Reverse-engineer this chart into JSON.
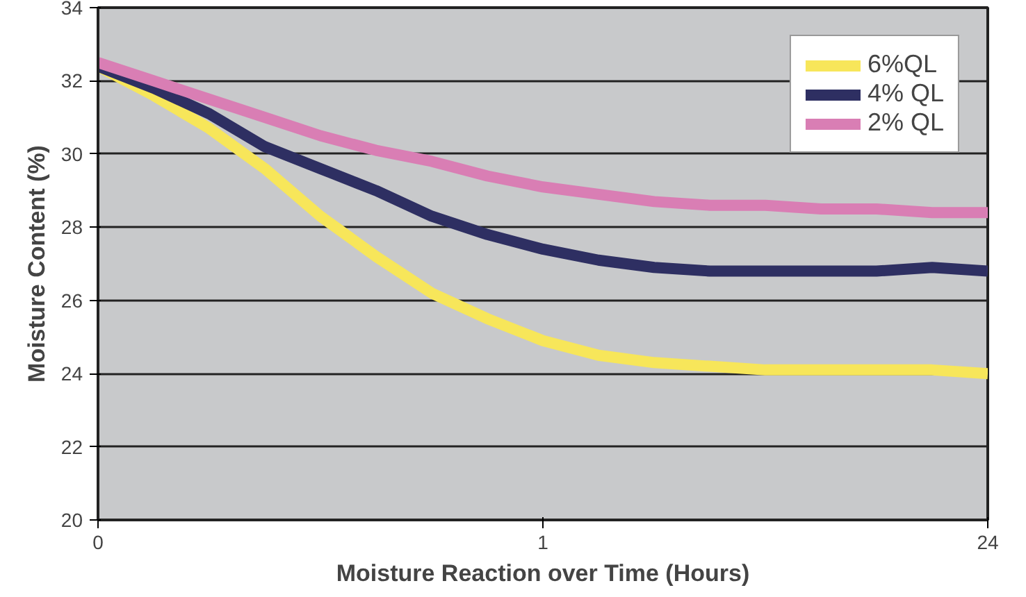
{
  "chart_data": {
    "type": "line",
    "xlabel": "Moisture Reaction over Time (Hours)",
    "ylabel": "Moisture Content (%)",
    "categories": [
      "0",
      null,
      null,
      null,
      null,
      null,
      null,
      null,
      "1",
      null,
      null,
      null,
      null,
      null,
      null,
      null,
      "24"
    ],
    "series": [
      {
        "name": "6%QL",
        "color": "#f7e65a",
        "values": [
          32.4,
          31.6,
          30.7,
          29.6,
          28.3,
          27.2,
          26.2,
          25.5,
          24.9,
          24.5,
          24.3,
          24.2,
          24.1,
          24.1,
          24.1,
          24.1,
          24.0
        ]
      },
      {
        "name": "4% QL",
        "color": "#2e2f62",
        "values": [
          32.4,
          31.8,
          31.1,
          30.2,
          29.6,
          29.0,
          28.3,
          27.8,
          27.4,
          27.1,
          26.9,
          26.8,
          26.8,
          26.8,
          26.8,
          26.9,
          26.8
        ]
      },
      {
        "name": "2% QL",
        "color": "#d97eb4",
        "values": [
          32.5,
          32.0,
          31.5,
          31.0,
          30.5,
          30.1,
          29.8,
          29.4,
          29.1,
          28.9,
          28.7,
          28.6,
          28.6,
          28.5,
          28.5,
          28.4,
          28.4
        ]
      }
    ],
    "ylim": [
      20,
      34
    ],
    "yticks": [
      20,
      22,
      24,
      26,
      28,
      30,
      32,
      34
    ],
    "grid": "y",
    "legend": "top right",
    "line_style": "solid"
  }
}
